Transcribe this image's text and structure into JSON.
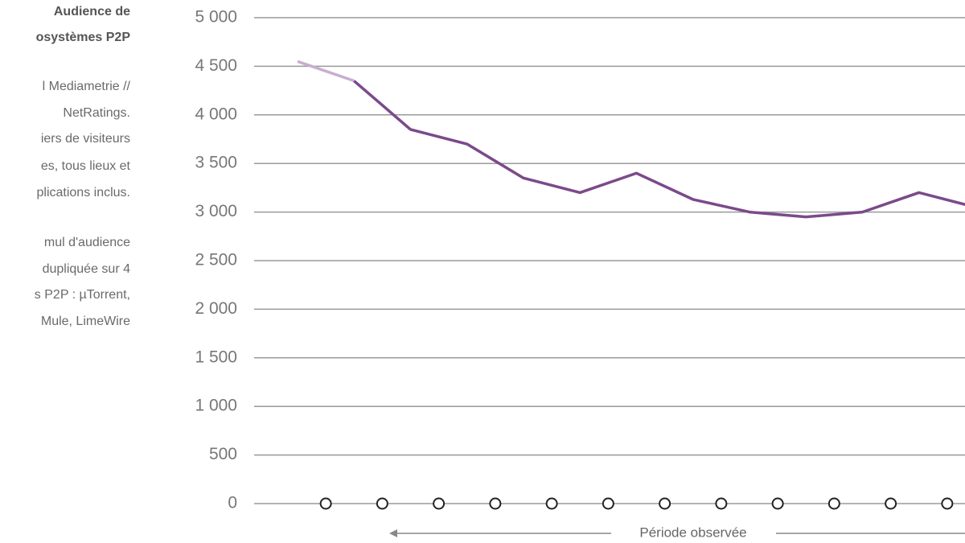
{
  "notes": {
    "title": [
      "Audience de",
      "osystèmes P2P"
    ],
    "body": [
      "l Mediametrie //",
      "NetRatings.",
      "iers de visiteurs",
      "es, tous lieux et",
      "plications inclus.",
      "mul d'audience",
      "dupliquée sur 4",
      "s P2P : µTorrent,",
      "Mule, LimeWire"
    ]
  },
  "chart_data": {
    "type": "line",
    "x_label": "Période observée",
    "categories": [
      null,
      null,
      null,
      null,
      null,
      null,
      null,
      null,
      null,
      null,
      null,
      null,
      null
    ],
    "values": [
      4550,
      4350,
      3850,
      3700,
      3350,
      3200,
      3400,
      3130,
      3000,
      2950,
      3000,
      3200,
      3050
    ],
    "color": "#7b4a8a",
    "first_segment_color": "#c9aed0",
    "ylim": [
      0,
      5000
    ],
    "yticks": [
      0,
      500,
      {
        "value": 1000,
        "label": "1 000"
      },
      {
        "value": 1500,
        "label": "1 500"
      },
      {
        "value": 2000,
        "label": "2 000"
      },
      {
        "value": 2500,
        "label": "2 500"
      },
      {
        "value": 3000,
        "label": "3 000"
      },
      {
        "value": 3500,
        "label": "3 500"
      },
      {
        "value": 4000,
        "label": "4 000"
      },
      {
        "value": 4500,
        "label": "4 500"
      },
      {
        "value": 5000,
        "label": "5 000"
      }
    ],
    "grid": true
  }
}
